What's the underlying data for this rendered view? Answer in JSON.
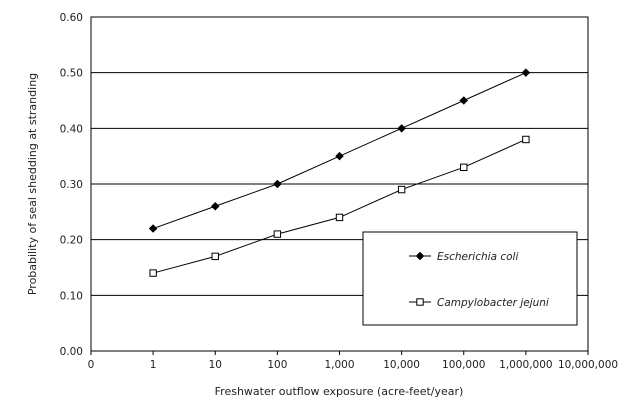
{
  "chart_data": {
    "type": "line",
    "xlabel": "Freshwater outflow exposure (acre-feet/year)",
    "ylabel": "Probability of seal shedding at stranding",
    "x_scale": "log",
    "categories": [
      "0",
      "1",
      "10",
      "100",
      "1,000",
      "10,000",
      "100,000",
      "1,000,000",
      "10,000,000"
    ],
    "y_ticks": [
      "0.00",
      "0.10",
      "0.20",
      "0.30",
      "0.40",
      "0.50",
      "0.60"
    ],
    "ylim": [
      0,
      0.6
    ],
    "grid": "horizontal",
    "legend_position": "center-right",
    "series": [
      {
        "name": "Escherichia coli",
        "marker": "filled-diamond",
        "color": "#000000",
        "x": [
          1,
          10,
          100,
          1000,
          10000,
          100000,
          1000000
        ],
        "values": [
          0.22,
          0.26,
          0.3,
          0.35,
          0.4,
          0.45,
          0.5
        ]
      },
      {
        "name": "Campylobacter jejuni",
        "marker": "open-square",
        "color": "#000000",
        "x": [
          1,
          10,
          100,
          1000,
          10000,
          100000,
          1000000
        ],
        "values": [
          0.14,
          0.17,
          0.21,
          0.24,
          0.29,
          0.33,
          0.38
        ]
      }
    ]
  }
}
